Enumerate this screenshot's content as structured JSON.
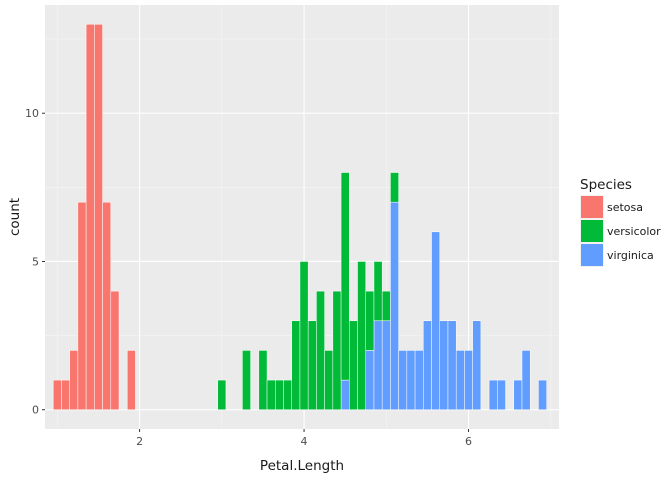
{
  "chart_data": {
    "type": "bar",
    "subtype": "stacked-histogram",
    "xlabel": "Petal.Length",
    "ylabel": "count",
    "xlim": [
      0.85,
      7.1
    ],
    "ylim": [
      -0.65,
      13.65
    ],
    "x_ticks": [
      {
        "value": 2,
        "label": "2"
      },
      {
        "value": 4,
        "label": "4"
      },
      {
        "value": 6,
        "label": "6"
      }
    ],
    "y_ticks": [
      {
        "value": 0,
        "label": "0"
      },
      {
        "value": 5,
        "label": "5"
      },
      {
        "value": 10,
        "label": "10"
      }
    ],
    "bin_width": 0.1,
    "grid": true,
    "legend": {
      "title": "Species",
      "position": "right",
      "entries": [
        {
          "name": "setosa",
          "color": "#F8766D"
        },
        {
          "name": "versicolor",
          "color": "#00BA38"
        },
        {
          "name": "virginica",
          "color": "#619CFF"
        }
      ]
    },
    "series": [
      {
        "name": "setosa",
        "color": "#F8766D",
        "bins": [
          {
            "x": 1.0,
            "count": 1
          },
          {
            "x": 1.1,
            "count": 1
          },
          {
            "x": 1.2,
            "count": 2
          },
          {
            "x": 1.3,
            "count": 7
          },
          {
            "x": 1.4,
            "count": 13
          },
          {
            "x": 1.5,
            "count": 13
          },
          {
            "x": 1.6,
            "count": 7
          },
          {
            "x": 1.7,
            "count": 4
          },
          {
            "x": 1.9,
            "count": 2
          }
        ]
      },
      {
        "name": "versicolor",
        "color": "#00BA38",
        "bins": [
          {
            "x": 3.0,
            "count": 1
          },
          {
            "x": 3.3,
            "count": 2
          },
          {
            "x": 3.5,
            "count": 2
          },
          {
            "x": 3.6,
            "count": 1
          },
          {
            "x": 3.7,
            "count": 1
          },
          {
            "x": 3.8,
            "count": 1
          },
          {
            "x": 3.9,
            "count": 3
          },
          {
            "x": 4.0,
            "count": 5
          },
          {
            "x": 4.1,
            "count": 3
          },
          {
            "x": 4.2,
            "count": 4
          },
          {
            "x": 4.3,
            "count": 2
          },
          {
            "x": 4.4,
            "count": 4
          },
          {
            "x": 4.5,
            "count": 7
          },
          {
            "x": 4.6,
            "count": 3
          },
          {
            "x": 4.7,
            "count": 5
          },
          {
            "x": 4.8,
            "count": 2
          },
          {
            "x": 4.9,
            "count": 2
          },
          {
            "x": 5.0,
            "count": 1
          },
          {
            "x": 5.1,
            "count": 1
          }
        ]
      },
      {
        "name": "virginica",
        "color": "#619CFF",
        "bins": [
          {
            "x": 4.5,
            "count": 1
          },
          {
            "x": 4.8,
            "count": 2
          },
          {
            "x": 4.9,
            "count": 3
          },
          {
            "x": 5.0,
            "count": 3
          },
          {
            "x": 5.1,
            "count": 7
          },
          {
            "x": 5.2,
            "count": 2
          },
          {
            "x": 5.3,
            "count": 2
          },
          {
            "x": 5.4,
            "count": 2
          },
          {
            "x": 5.5,
            "count": 3
          },
          {
            "x": 5.6,
            "count": 6
          },
          {
            "x": 5.7,
            "count": 3
          },
          {
            "x": 5.8,
            "count": 3
          },
          {
            "x": 5.9,
            "count": 2
          },
          {
            "x": 6.0,
            "count": 2
          },
          {
            "x": 6.1,
            "count": 3
          },
          {
            "x": 6.3,
            "count": 1
          },
          {
            "x": 6.4,
            "count": 1
          },
          {
            "x": 6.6,
            "count": 1
          },
          {
            "x": 6.7,
            "count": 2
          },
          {
            "x": 6.9,
            "count": 1
          }
        ]
      }
    ]
  }
}
